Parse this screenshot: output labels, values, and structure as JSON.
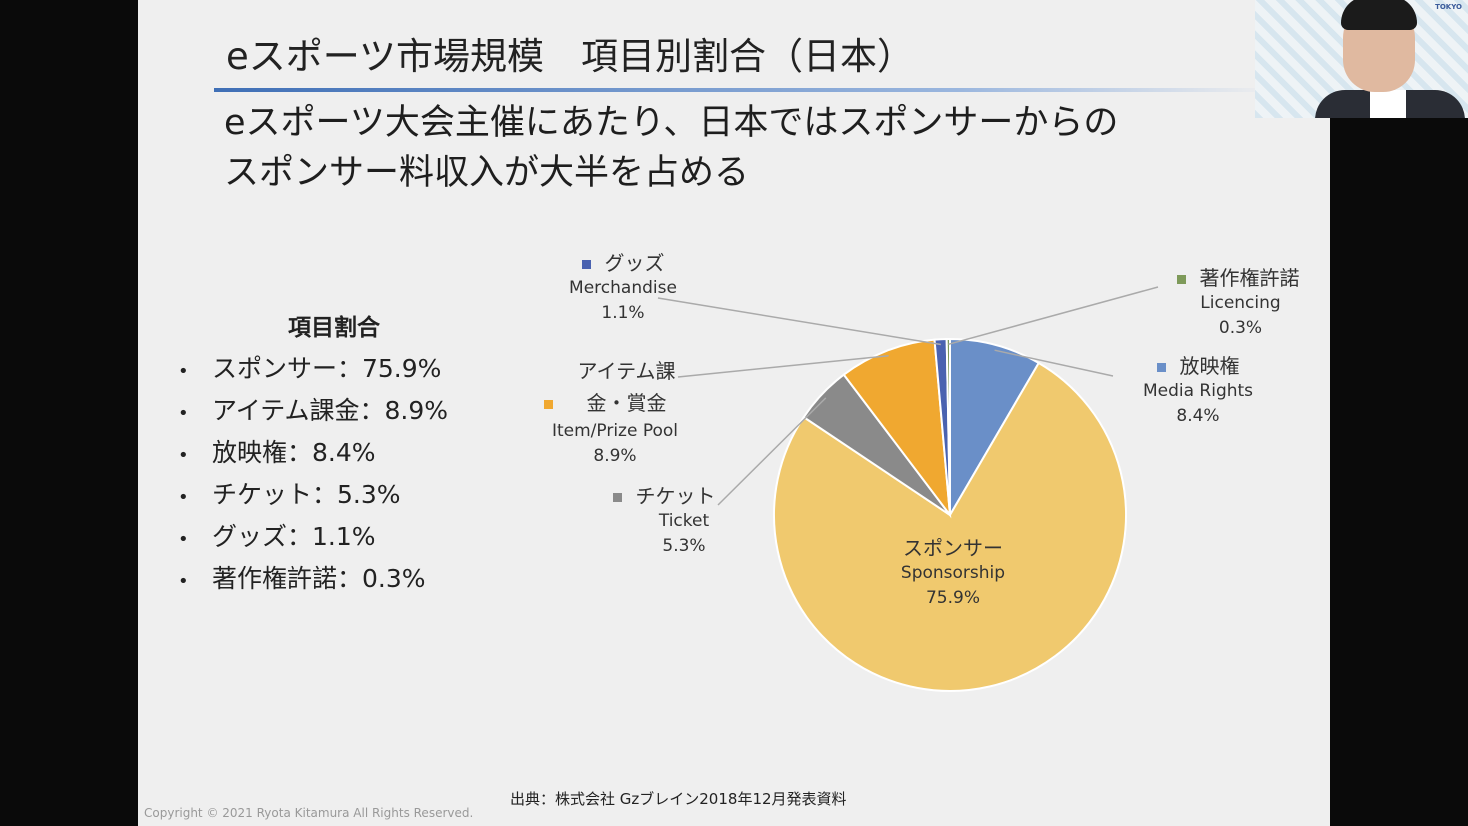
{
  "slide": {
    "title": "eスポーツ市場規模　項目別割合（日本）",
    "subtitle_line1": "eスポーツ大会主催にあたり、日本ではスポンサーからの",
    "subtitle_line2": "スポンサー料収入が大半を占める",
    "list_heading": "項目割合",
    "list_items": [
      "スポンサー：75.9%",
      "アイテム課金：8.9%",
      "放映権：8.4%",
      "チケット：5.3%",
      "グッズ：1.1%",
      "著作権許諾：0.3%"
    ],
    "source": "出典：株式会社 Gzブレイン2018年12月発表資料",
    "copyright": "Copyright © 2021 Ryota Kitamura All Rights Reserved."
  },
  "webcam": {
    "logo_text": "TOKYO"
  },
  "chart_data": {
    "type": "pie",
    "start_angle": "12 o'clock, clockwise",
    "slices": [
      {
        "jp": "放映権",
        "en": "Media Rights",
        "value": 8.4,
        "label": "8.4%",
        "color": "#6a8fc8"
      },
      {
        "jp": "スポンサー",
        "en": "Sponsorship",
        "value": 75.9,
        "label": "75.9%",
        "color": "#f0c96e"
      },
      {
        "jp": "チケット",
        "en": "Ticket",
        "value": 5.3,
        "label": "5.3%",
        "color": "#8a8a8a"
      },
      {
        "jp": "アイテム課金・賞金",
        "en": "Item/Prize Pool",
        "value": 8.9,
        "label": "8.9%",
        "color": "#f0a830"
      },
      {
        "jp": "グッズ",
        "en": "Merchandise",
        "value": 1.1,
        "label": "1.1%",
        "color": "#4a62b0"
      },
      {
        "jp": "著作権許諾",
        "en": "Licencing",
        "value": 0.3,
        "label": "0.3%",
        "color": "#7e9a5a"
      }
    ]
  }
}
